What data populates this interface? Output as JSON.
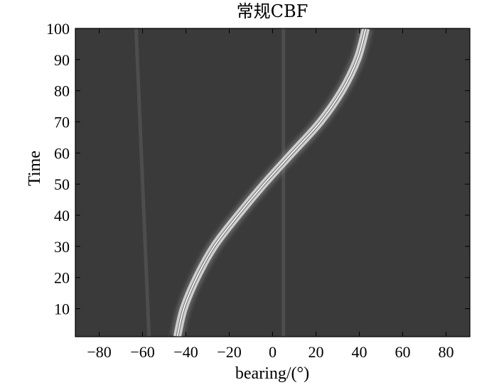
{
  "chart_data": {
    "type": "heatmap",
    "title": "常规CBF",
    "xlabel": "bearing/(°)",
    "ylabel": "Time",
    "xlim": [
      -91,
      91
    ],
    "ylim": [
      1,
      100
    ],
    "x_ticks": [
      -80,
      -60,
      -40,
      -20,
      0,
      20,
      40,
      60,
      80
    ],
    "x_tick_labels": [
      "−80",
      "−60",
      "−40",
      "−20",
      "0",
      "20",
      "40",
      "60",
      "80"
    ],
    "y_ticks": [
      10,
      20,
      30,
      40,
      50,
      60,
      70,
      80,
      90,
      100
    ],
    "y_tick_labels": [
      "10",
      "20",
      "30",
      "40",
      "50",
      "60",
      "70",
      "80",
      "90",
      "100"
    ],
    "colormap": "gray",
    "background_color": "#3a3a3a",
    "track_color": "#f2f2f2",
    "track": {
      "name": "",
      "time": [
        1,
        10,
        20,
        30,
        40,
        50,
        60,
        70,
        80,
        90,
        100
      ],
      "bearing": [
        -44,
        -41,
        -35,
        -27,
        -16,
        -4,
        9,
        22,
        32,
        39,
        43
      ]
    },
    "faint_tracks": [
      {
        "bearing_start": -57,
        "bearing_end": -63
      },
      {
        "bearing_start": 5,
        "bearing_end": 5
      }
    ]
  }
}
